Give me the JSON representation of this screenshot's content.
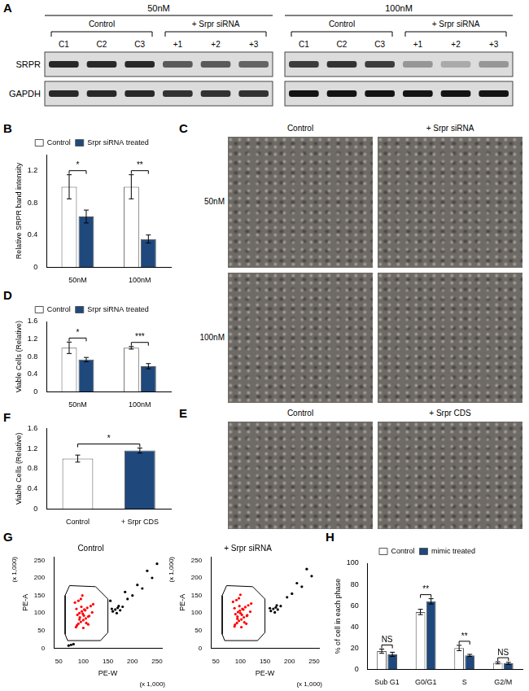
{
  "blot": {
    "panel": "A",
    "row_labels": [
      "SRPR",
      "GAPDH"
    ],
    "blots": [
      {
        "title": "50nM",
        "groups": [
          {
            "label": "Control",
            "lanes": [
              "C1",
              "C2",
              "C3"
            ]
          },
          {
            "label": "+ Srpr siRNA",
            "lanes": [
              "+1",
              "+2",
              "+3"
            ]
          }
        ],
        "srpr_intensity": [
          0.9,
          0.9,
          0.9,
          0.65,
          0.65,
          0.6
        ],
        "gapdh_intensity": [
          0.9,
          0.9,
          0.9,
          0.85,
          0.85,
          0.85
        ]
      },
      {
        "title": "100nM",
        "groups": [
          {
            "label": "Control",
            "lanes": [
              "C1",
              "C2",
              "C3"
            ]
          },
          {
            "label": "+ Srpr siRNA",
            "lanes": [
              "+1",
              "+2",
              "+3"
            ]
          }
        ],
        "srpr_intensity": [
          0.8,
          0.85,
          0.8,
          0.35,
          0.25,
          0.35
        ],
        "gapdh_intensity": [
          1,
          1,
          1,
          1,
          1,
          1
        ]
      }
    ]
  },
  "micrographs": [
    {
      "panel": "C",
      "columns": [
        "Control",
        "+ Srpr siRNA"
      ],
      "rows": [
        "50nM",
        "100nM"
      ]
    },
    {
      "panel": "E",
      "columns": [
        "Control",
        "+ Srpr CDS"
      ]
    }
  ],
  "chart_data": [
    {
      "panel": "B",
      "type": "bar",
      "y_label": "Relative SRPR band intensity",
      "categories": [
        "50nM",
        "100nM"
      ],
      "series": [
        {
          "name": "Control",
          "color": "#ffffff",
          "values": [
            1.0,
            1.0
          ],
          "errors": [
            0.15,
            0.15
          ]
        },
        {
          "name": "Srpr siRNA treated",
          "color": "#1f497d",
          "values": [
            0.63,
            0.35
          ],
          "errors": [
            0.08,
            0.05
          ]
        }
      ],
      "ylim": [
        0,
        1.4
      ],
      "yticks": [
        0,
        0.4,
        0.8,
        1.2
      ],
      "grid": false,
      "legend": "top",
      "annotations": [
        {
          "text": "*",
          "category": "50nM"
        },
        {
          "text": "**",
          "category": "100nM"
        }
      ]
    },
    {
      "panel": "D",
      "type": "bar",
      "y_label": "Viable Cells (Relative)",
      "categories": [
        "50nM",
        "100nM"
      ],
      "series": [
        {
          "name": "Control",
          "color": "#ffffff",
          "values": [
            1.0,
            1.0
          ],
          "errors": [
            0.13,
            0.03
          ]
        },
        {
          "name": "Srpr siRNA treated",
          "color": "#1f497d",
          "values": [
            0.73,
            0.58
          ],
          "errors": [
            0.05,
            0.06
          ]
        }
      ],
      "ylim": [
        0,
        1.6
      ],
      "yticks": [
        0,
        0.4,
        0.8,
        1.2,
        1.6
      ],
      "grid": false,
      "legend": "top",
      "annotations": [
        {
          "text": "*",
          "category": "50nM"
        },
        {
          "text": "***",
          "category": "100nM"
        }
      ]
    },
    {
      "panel": "F",
      "type": "bar",
      "y_label": "Viable Cells (Relative)",
      "categories": [
        "Control",
        "+ Srpr CDS"
      ],
      "series": [
        {
          "colors": [
            "#ffffff",
            "#1f497d"
          ],
          "values": [
            1.0,
            1.16
          ],
          "errors": [
            0.07,
            0.05
          ]
        }
      ],
      "ylim": [
        0,
        1.6
      ],
      "yticks": [
        0,
        0.4,
        0.8,
        1.2,
        1.6
      ],
      "grid": false,
      "annotations": [
        {
          "text": "*",
          "categories": [
            "Control",
            "+ Srpr CDS"
          ]
        }
      ]
    },
    {
      "panel": "G",
      "type": "scatter",
      "title": "Control",
      "x_label": "PE-W",
      "y_label": "PE-A",
      "x_unit_label": "(x 1,000)",
      "y_unit_label": "(x 1,000)",
      "xlim": [
        40,
        260
      ],
      "xticks": [
        50,
        100,
        150,
        200,
        250
      ],
      "ylim": [
        0,
        260
      ],
      "yticks": [
        0,
        50,
        100,
        150,
        200,
        250
      ],
      "grid": false,
      "series": [
        {
          "color": "#ff0000",
          "marker": "dot",
          "x": [
            85,
            90,
            95,
            100,
            105,
            110,
            88,
            92,
            97,
            102,
            108,
            115,
            120,
            83,
            87,
            93,
            99,
            104,
            112,
            118,
            90,
            95,
            100,
            106,
            96,
            92,
            101,
            110,
            86,
            98
          ],
          "values": [
            60,
            70,
            75,
            80,
            85,
            90,
            95,
            100,
            105,
            110,
            115,
            120,
            125,
            130,
            65,
            88,
            98,
            108,
            92,
            102,
            135,
            140,
            58,
            72,
            118,
            82,
            93,
            68,
            112,
            150
          ]
        },
        {
          "color": "#000000",
          "marker": "dot",
          "x": [
            160,
            165,
            170,
            175,
            168,
            172,
            158,
            180,
            200,
            220,
            240,
            190,
            210,
            230,
            250,
            75,
            70,
            80,
            155,
            185
          ],
          "values": [
            105,
            110,
            115,
            108,
            100,
            120,
            112,
            118,
            150,
            170,
            200,
            140,
            180,
            220,
            240,
            10,
            8,
            12,
            135,
            160
          ]
        },
        {
          "type": "line",
          "color": "#000000",
          "x": [
            68,
            135,
            150,
            150,
            125,
            72,
            63,
            63,
            68
          ],
          "values": [
            22,
            22,
            45,
            140,
            175,
            178,
            150,
            40,
            22
          ]
        }
      ]
    },
    {
      "type": "scatter",
      "title": "+ Srpr siRNA",
      "x_label": "PE-W",
      "y_label": "PE-A",
      "x_unit_label": "(x 1,000)",
      "y_unit_label": "(x 1,000)",
      "xlim": [
        40,
        260
      ],
      "xticks": [
        50,
        100,
        150,
        200,
        250
      ],
      "ylim": [
        0,
        260
      ],
      "yticks": [
        0,
        50,
        100,
        150,
        200,
        250
      ],
      "grid": false,
      "series": [
        {
          "color": "#ff0000",
          "marker": "dot",
          "x": [
            88,
            93,
            97,
            102,
            107,
            113,
            90,
            95,
            99,
            104,
            110,
            116,
            122,
            85,
            89,
            94,
            100,
            106,
            114,
            120,
            92,
            97,
            102,
            108,
            98,
            94,
            103,
            112,
            88,
            100
          ],
          "values": [
            62,
            72,
            78,
            82,
            88,
            92,
            97,
            103,
            107,
            112,
            117,
            122,
            127,
            132,
            67,
            90,
            100,
            110,
            94,
            104,
            137,
            142,
            60,
            74,
            120,
            84,
            95,
            70,
            114,
            152
          ]
        },
        {
          "color": "#000000",
          "marker": "dot",
          "x": [
            162,
            167,
            172,
            176,
            170,
            174,
            160,
            182,
            205,
            225,
            245,
            195,
            215,
            235
          ],
          "values": [
            106,
            112,
            116,
            110,
            102,
            122,
            114,
            120,
            155,
            175,
            205,
            145,
            185,
            225
          ]
        },
        {
          "type": "line",
          "color": "#000000",
          "x": [
            68,
            135,
            150,
            150,
            125,
            72,
            63,
            63,
            68
          ],
          "values": [
            22,
            22,
            45,
            140,
            175,
            178,
            150,
            40,
            22
          ]
        }
      ]
    },
    {
      "panel": "H",
      "type": "bar",
      "y_label": "% of cell in each phase",
      "categories": [
        "Sub G1",
        "G0/G1",
        "S",
        "G2/M"
      ],
      "series": [
        {
          "name": "Control",
          "color": "#ffffff",
          "values": [
            17,
            54,
            20,
            6
          ],
          "errors": [
            2,
            2.5,
            2.5,
            1
          ]
        },
        {
          "name": "mimic treated",
          "color": "#1f497d",
          "values": [
            14,
            64,
            13,
            5.5
          ],
          "errors": [
            2,
            2.5,
            1,
            1
          ]
        }
      ],
      "ylim": [
        0,
        100
      ],
      "yticks": [
        0,
        20,
        40,
        60,
        80,
        100
      ],
      "grid": false,
      "legend": "top",
      "annotations": [
        {
          "text": "NS",
          "category": "Sub G1"
        },
        {
          "text": "**",
          "category": "G0/G1"
        },
        {
          "text": "**",
          "category": "S"
        },
        {
          "text": "NS",
          "category": "G2/M"
        }
      ]
    }
  ]
}
